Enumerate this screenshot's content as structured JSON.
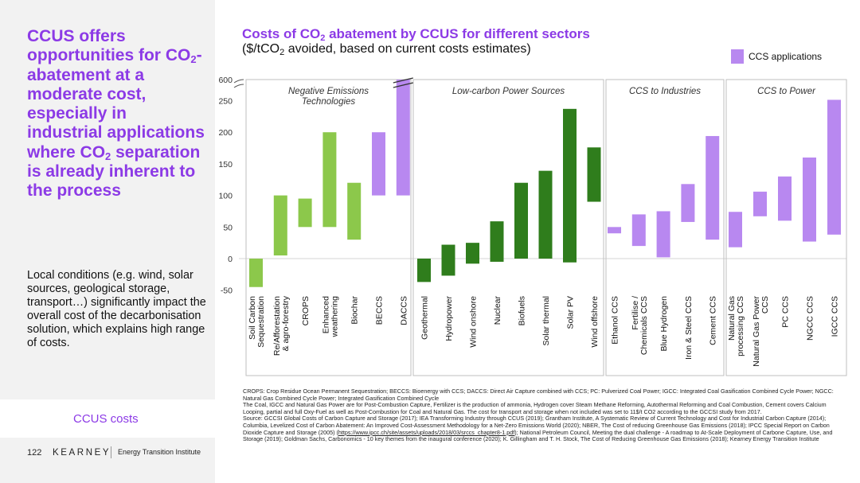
{
  "headline": {
    "line1": "CCUS offers opportunities for CO",
    "sub": "2",
    "line2": "-abatement at a moderate cost, especially in industrial applications where CO",
    "sub2": "2",
    "line3": " separation is already inherent to the process"
  },
  "body_text": "Local conditions (e.g. wind, solar sources, geological storage, transport…) significantly impact the overall cost of the decarbonisation solution, which explains high range of costs.",
  "footer": {
    "label": "CCUS costs",
    "page_number": "122",
    "brand": "KEARNEY",
    "brand_sub": "Energy Transition Institute"
  },
  "legend": {
    "label": "CCS applications",
    "color": "#b888f0"
  },
  "colors": {
    "accent": "#8c3ae6",
    "light_green": "#8cc84b",
    "dark_green": "#2f7d1c",
    "purple": "#b888f0"
  },
  "chart_data": {
    "type": "floating-bar",
    "title_pre": "Costs of CO",
    "title_sub": "2",
    "title_post": " abatement by CCUS for different sectors",
    "subtitle_pre": "($/tCO",
    "subtitle_sub": "2",
    "subtitle_post": " avoided, based on current costs estimates)",
    "y_ticks": [
      "-50",
      "0",
      "50",
      "100",
      "150",
      "200",
      "250",
      "600"
    ],
    "ylim": [
      -50,
      600
    ],
    "axis_break": [
      250,
      600
    ],
    "grid": false,
    "legend_position": "top-right",
    "groups": [
      {
        "name": "Negative Emissions Technologies",
        "name_line1": "Negative Emissions",
        "name_line2": "Technologies",
        "bars": [
          {
            "label": [
              "Soil Carbon",
              "Sequestration"
            ],
            "low": -45,
            "high": 0,
            "color": "light_green"
          },
          {
            "label": [
              "Re/Afforestation",
              "& agro-forestry"
            ],
            "low": 5,
            "high": 100,
            "color": "light_green"
          },
          {
            "label": [
              "CROPS"
            ],
            "low": 50,
            "high": 95,
            "color": "light_green"
          },
          {
            "label": [
              "Enhanced",
              "weathering"
            ],
            "low": 50,
            "high": 200,
            "color": "light_green"
          },
          {
            "label": [
              "Biochar"
            ],
            "low": 30,
            "high": 120,
            "color": "light_green"
          },
          {
            "label": [
              "BECCS"
            ],
            "low": 100,
            "high": 200,
            "color": "purple"
          },
          {
            "label": [
              "DACCS"
            ],
            "low": 100,
            "high": 600,
            "color": "purple"
          }
        ]
      },
      {
        "name": "Low-carbon Power Sources",
        "name_line1": "Low-carbon Power Sources",
        "name_line2": "",
        "bars": [
          {
            "label": [
              "Geothermal"
            ],
            "low": -37,
            "high": 0,
            "color": "dark_green"
          },
          {
            "label": [
              "Hydropower"
            ],
            "low": -27,
            "high": 22,
            "color": "dark_green"
          },
          {
            "label": [
              "Wind onshore"
            ],
            "low": -8,
            "high": 25,
            "color": "dark_green"
          },
          {
            "label": [
              "Nuclear"
            ],
            "low": -5,
            "high": 59,
            "color": "dark_green"
          },
          {
            "label": [
              "Biofuels"
            ],
            "low": 0,
            "high": 120,
            "color": "dark_green"
          },
          {
            "label": [
              "Solar thermal"
            ],
            "low": 0,
            "high": 139,
            "color": "dark_green"
          },
          {
            "label": [
              "Solar PV"
            ],
            "low": -6,
            "high": 237,
            "color": "dark_green"
          },
          {
            "label": [
              "Wind offshore"
            ],
            "low": 90,
            "high": 176,
            "color": "dark_green"
          }
        ]
      },
      {
        "name": "CCS to Industries",
        "name_line1": "CCS to Industries",
        "name_line2": "",
        "bars": [
          {
            "label": [
              "Ethanol CCS"
            ],
            "low": 40,
            "high": 50,
            "color": "purple"
          },
          {
            "label": [
              "Fertilise /",
              "Chemicals CCS"
            ],
            "low": 20,
            "high": 70,
            "color": "purple"
          },
          {
            "label": [
              "Blue Hydrogen"
            ],
            "low": 2,
            "high": 75,
            "color": "purple"
          },
          {
            "label": [
              "Iron & Steel CCS"
            ],
            "low": 58,
            "high": 118,
            "color": "purple"
          },
          {
            "label": [
              "Cement CCS"
            ],
            "low": 30,
            "high": 194,
            "color": "purple"
          }
        ]
      },
      {
        "name": "CCS to Power",
        "name_line1": "CCS to Power",
        "name_line2": "",
        "bars": [
          {
            "label": [
              "Natural Gas",
              "processing CCS"
            ],
            "low": 18,
            "high": 74,
            "color": "purple"
          },
          {
            "label": [
              "Natural Gas Power",
              "CCS"
            ],
            "low": 67,
            "high": 106,
            "color": "purple"
          },
          {
            "label": [
              "PC CCS"
            ],
            "low": 60,
            "high": 130,
            "color": "purple"
          },
          {
            "label": [
              "NGCC CCS"
            ],
            "low": 27,
            "high": 160,
            "color": "purple"
          },
          {
            "label": [
              "IGCC CCS"
            ],
            "low": 38,
            "high": 264,
            "color": "purple"
          }
        ]
      }
    ]
  },
  "footnotes": {
    "p1": "CROPS: Crop Residue Ocean Permanent Sequestration; BECCS: Bioenergy with CCS; DACCS: Direct Air Capture combined with CCS; PC: Pulverized Coal Power; IGCC: Integrated Coal Gasification Combined Cycle Power; NGCC: Natural Gas Combined Cycle Power; Integrated Gasification Combined Cycle",
    "p2": "The Coal, IGCC and Natural Gas Power are for Post-Combustion Capture, Fertilizer is the production of ammonia, Hydrogen cover Steam Methane Reforming, Autothermal Reforming and Coal Combustion, Cement covers Calcium Looping, partial and full Oxy-Fuel as well as Post-Combustion for Coal and Natural Gas. The cost for transport and storage when not included was set to 11$/t CO2 according to the GCCSI study from 2017.",
    "p3a": "Source: GCCSI Global Costs of Carbon Capture and Storage (2017); IEA Transforming Industry through CCUS (2019); Grantham Institute, A Systematic Review of Current Technology and Cost for Industrial Carbon Capture (2014); Columbia, Levelized Cost of Carbon Abatement: An Improved Cost-Assessment Methodology for a Net-Zero Emissions World (2020); NBER, The Cost of reducing Greenhouse Gas Emissions (2018); IPCC Special Report on Carbon Dioxide Capture and Storage (2005) (",
    "p3_link": "https://www.ipcc.ch/site/assets/uploads/2018/03/srccs_chapter8-1.pdf",
    "p3b": "); National Petroleum Council, Meeting the dual challenge - A roadmap to At-Scale Deployment of Carbone Capture, Use, and Storage (2019); Goldman Sachs, Carbonomics - 10 key themes from the inaugural conference (2020); K. Gillingham and T. H. Stock, The Cost of Reducing Greenhouse Gas Emissions (2018); Kearney Energy Transition Institute"
  }
}
